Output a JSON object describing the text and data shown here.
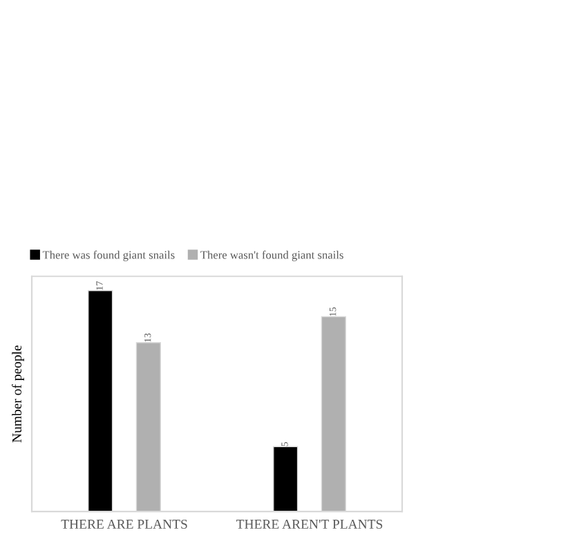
{
  "chart_data": {
    "type": "bar",
    "ylabel": "Number of people",
    "categories": [
      "THERE ARE PLANTS",
      "THERE AREN'T PLANTS"
    ],
    "series": [
      {
        "name": "There was found giant snails",
        "color": "#000000",
        "values": [
          17,
          5
        ]
      },
      {
        "name": "There wasn't found giant snails",
        "color": "#b0b0b0",
        "values": [
          13,
          15
        ]
      }
    ],
    "data_labels": true,
    "legend": "top",
    "grid": false
  }
}
